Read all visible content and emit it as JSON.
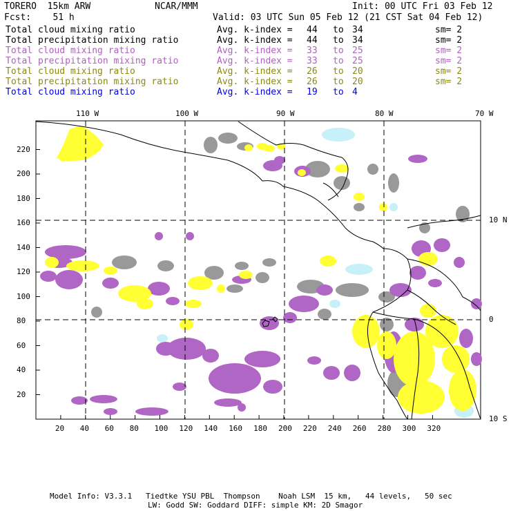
{
  "header": {
    "model": "TORERO  15km ARW",
    "org": "NCAR/MMM",
    "init": "Init: 00 UTC Fri 03 Feb 12",
    "fcst": "Fcst:    51 h",
    "valid": "Valid: 03 UTC Sun 05 Feb 12 (21 CST Sat 04 Feb 12)"
  },
  "legend": [
    {
      "field": "Total cloud mixing ratio",
      "avg": "Avg. k-index =",
      "from": "44",
      "to": "to",
      "toval": "34",
      "sm": "sm= 2",
      "color": "#000000"
    },
    {
      "field": "Total precipitation mixing ratio",
      "avg": "Avg. k-index =",
      "from": "44",
      "to": "to",
      "toval": "34",
      "sm": "sm= 2",
      "color": "#000000"
    },
    {
      "field": "Total cloud mixing ratio",
      "avg": "Avg. k-index =",
      "from": "33",
      "to": "to",
      "toval": "25",
      "sm": "sm= 2",
      "color": "#b060c0"
    },
    {
      "field": "Total precipitation mixing ratio",
      "avg": "Avg. k-index =",
      "from": "33",
      "to": "to",
      "toval": "25",
      "sm": "sm= 2",
      "color": "#b060c0"
    },
    {
      "field": "Total cloud mixing ratio",
      "avg": "Avg. k-index =",
      "from": "26",
      "to": "to",
      "toval": "20",
      "sm": "sm= 2",
      "color": "#8a8a10"
    },
    {
      "field": "Total precipitation mixing ratio",
      "avg": "Avg. k-index =",
      "from": "26",
      "to": "to",
      "toval": "20",
      "sm": "sm= 2",
      "color": "#8a8a10"
    },
    {
      "field": "Total cloud mixing ratio",
      "avg": "Avg. k-index =",
      "from": "19",
      "to": "to",
      "toval": "4",
      "sm": "",
      "color": "#0000e0"
    }
  ],
  "axes": {
    "lon_labels": [
      "110 W",
      "100 W",
      "90 W",
      "80 W",
      "70 W"
    ],
    "lat_labels": [
      "10 N",
      "0",
      "10 S"
    ],
    "x_ticks": [
      "20",
      "40",
      "60",
      "80",
      "100",
      "120",
      "140",
      "160",
      "180",
      "200",
      "220",
      "240",
      "260",
      "280",
      "300",
      "320"
    ],
    "y_ticks": [
      "20",
      "40",
      "60",
      "80",
      "100",
      "120",
      "140",
      "160",
      "180",
      "200",
      "220"
    ]
  },
  "colors": {
    "gray": "#999999",
    "purple": "#b066c4",
    "yellow": "#ffff33",
    "cyan": "#c8f0f8"
  },
  "footer": {
    "line1": "Model Info: V3.3.1   Tiedtke YSU PBL  Thompson    Noah LSM  15 km,   44 levels,   50 sec",
    "line2": "LW: Godd SW: Goddard DIFF: simple KM: 2D Smagor"
  }
}
